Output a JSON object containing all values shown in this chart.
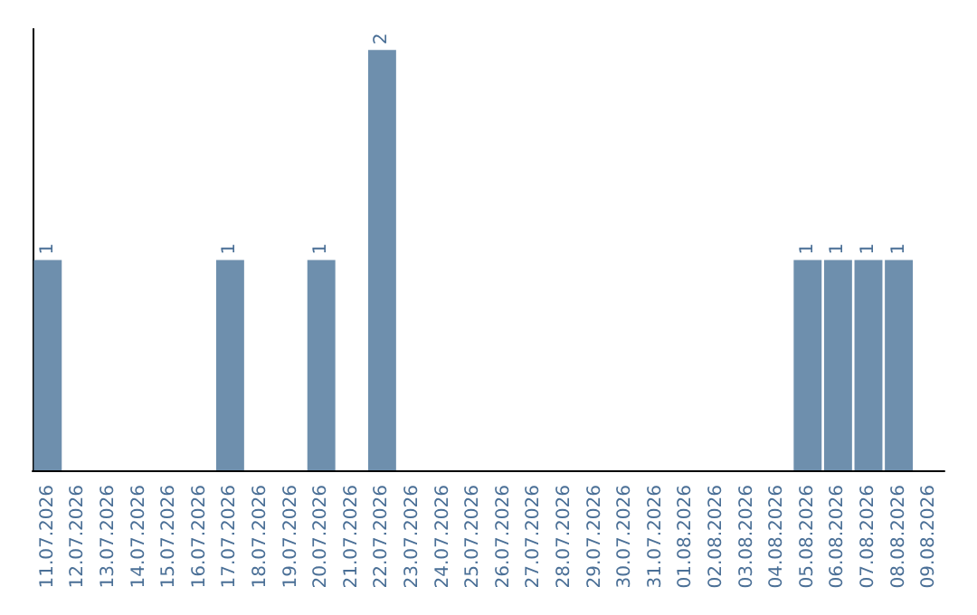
{
  "chart_data": {
    "type": "bar",
    "categories": [
      "11.07.2026",
      "12.07.2026",
      "13.07.2026",
      "14.07.2026",
      "15.07.2026",
      "16.07.2026",
      "17.07.2026",
      "18.07.2026",
      "19.07.2026",
      "20.07.2026",
      "21.07.2026",
      "22.07.2026",
      "23.07.2026",
      "24.07.2026",
      "25.07.2026",
      "26.07.2026",
      "27.07.2026",
      "28.07.2026",
      "29.07.2026",
      "30.07.2026",
      "31.07.2026",
      "01.08.2026",
      "02.08.2026",
      "03.08.2026",
      "04.08.2026",
      "05.08.2026",
      "06.08.2026",
      "07.08.2026",
      "08.08.2026",
      "09.08.2026"
    ],
    "values": [
      1,
      0,
      0,
      0,
      0,
      0,
      1,
      0,
      0,
      1,
      0,
      2,
      0,
      0,
      0,
      0,
      0,
      0,
      0,
      0,
      0,
      0,
      0,
      0,
      0,
      1,
      1,
      1,
      1,
      0
    ],
    "value_labels": [
      "1",
      null,
      null,
      null,
      null,
      null,
      "1",
      null,
      null,
      "1",
      null,
      "2",
      null,
      null,
      null,
      null,
      null,
      null,
      null,
      null,
      null,
      null,
      null,
      null,
      null,
      "1",
      "1",
      "1",
      "1",
      null
    ],
    "color": "#6e8fad"
  }
}
